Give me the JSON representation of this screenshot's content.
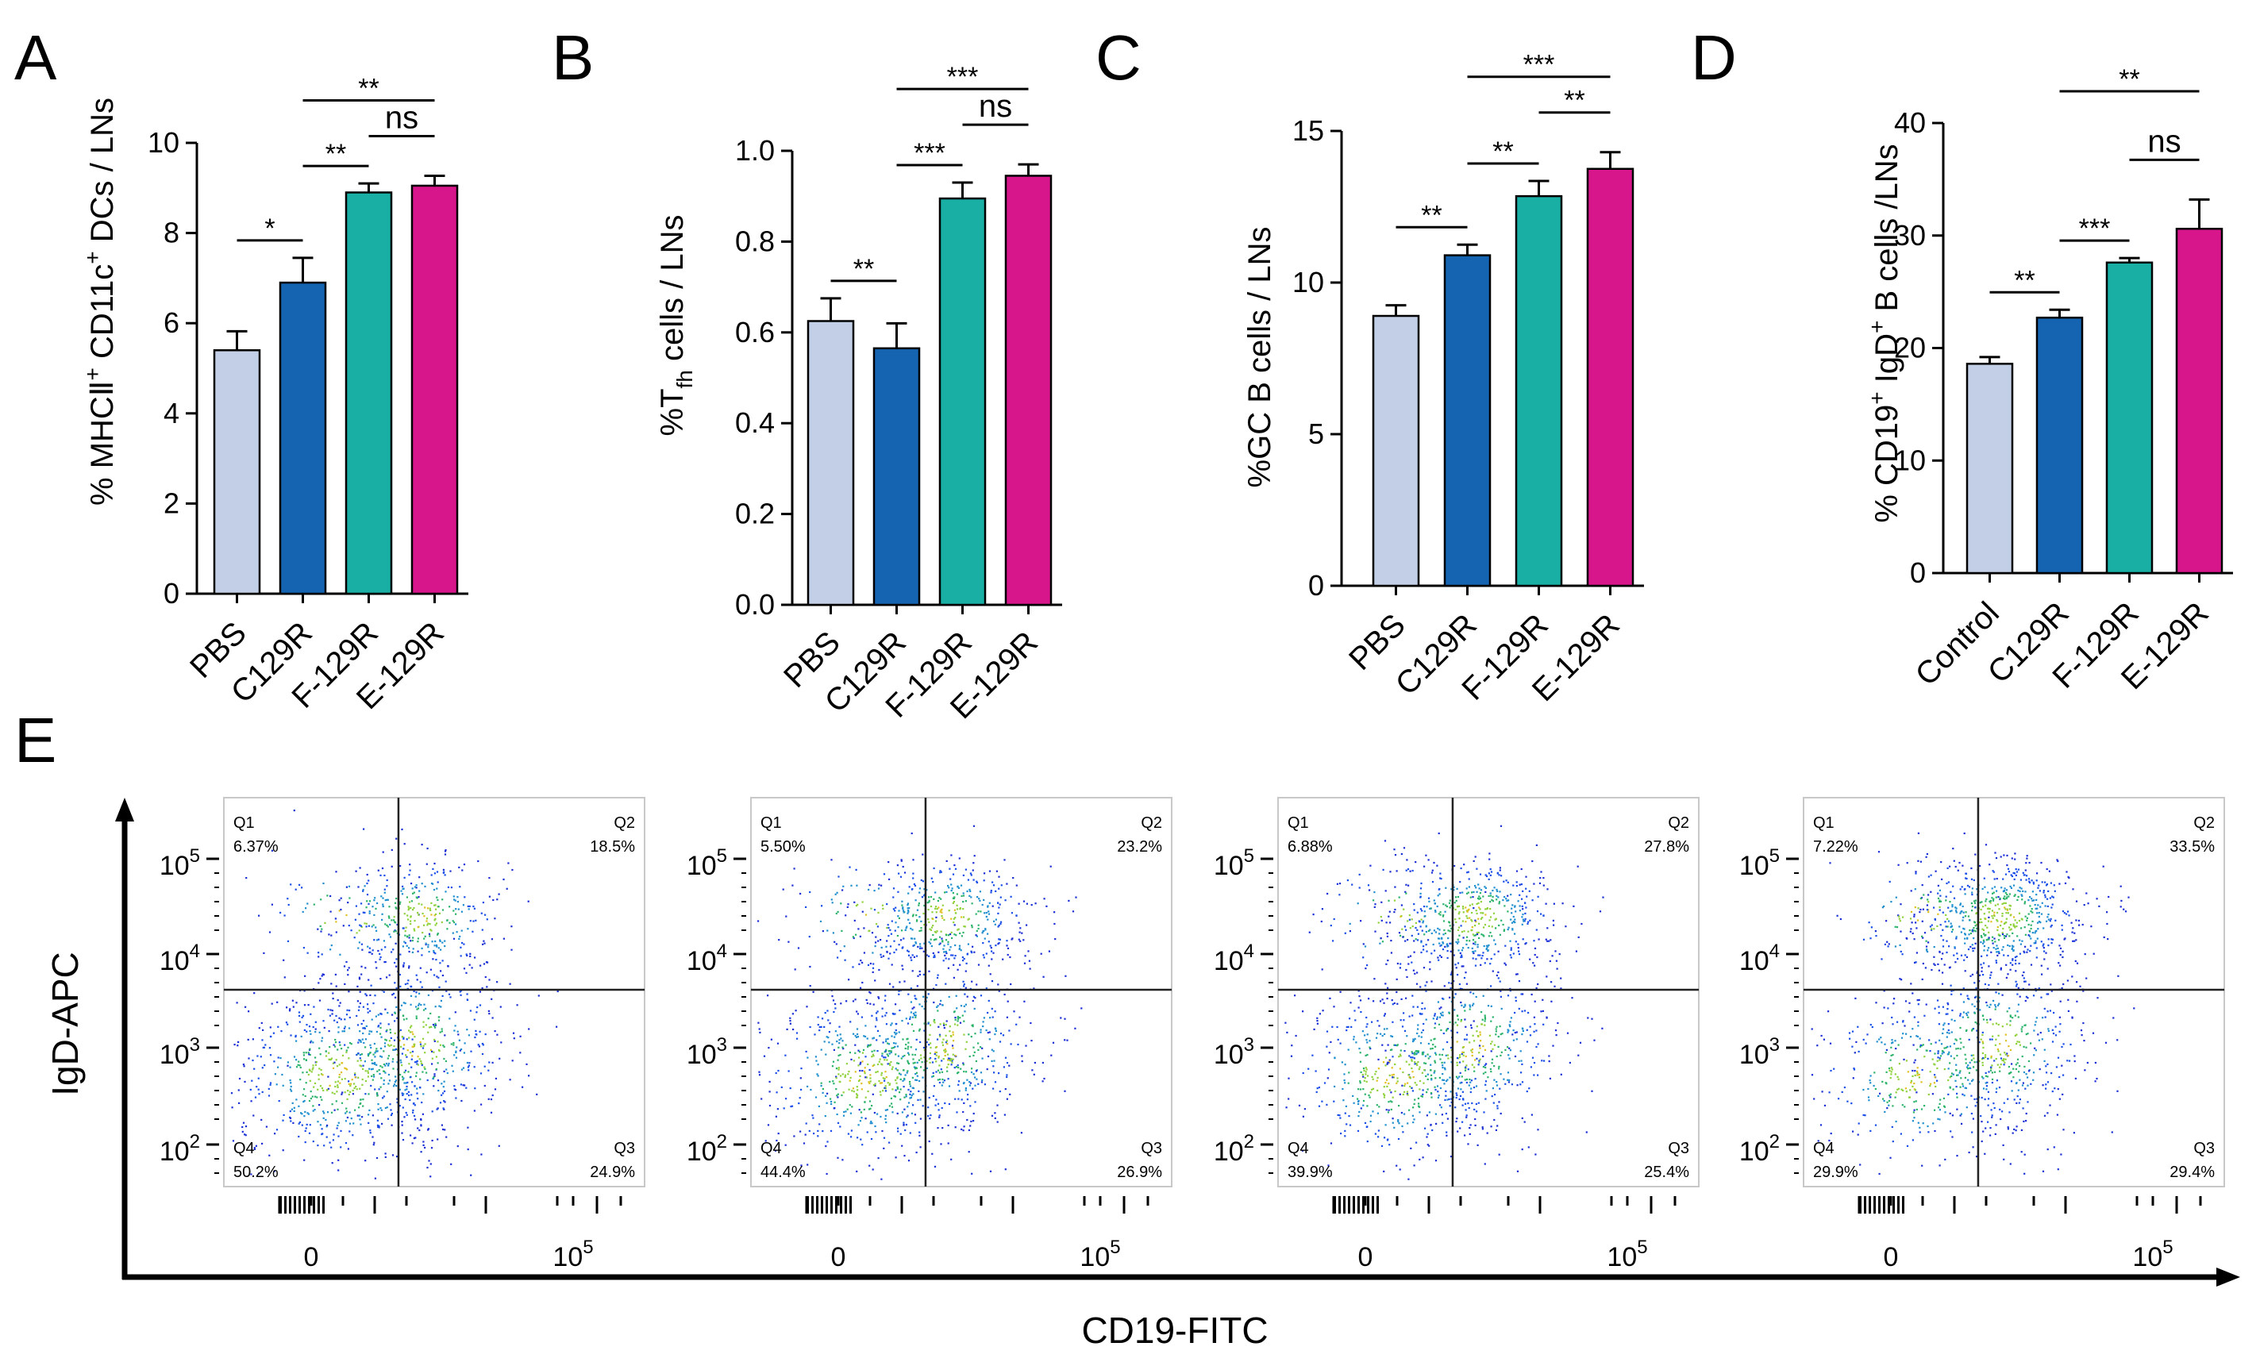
{
  "colors": {
    "pbs": "#c3cfe6",
    "c129r": "#1464b1",
    "f129r": "#19afa4",
    "e129r": "#d6168a",
    "axis": "#000000"
  },
  "chart_data": [
    {
      "type": "bar",
      "panel": "A",
      "ylabel_prefix": "% MHC",
      "ylabel_roman": "Ⅱ",
      "ylabel_sup1": "+",
      "ylabel_mid": " CD11c",
      "ylabel_sup2": "+",
      "ylabel_suffix": " DCs / LNs",
      "categories": [
        "PBS",
        "C129R",
        "F-129R",
        "E-129R"
      ],
      "values": [
        5.4,
        6.9,
        8.9,
        9.05
      ],
      "errors": [
        0.42,
        0.55,
        0.2,
        0.22
      ],
      "ylim": [
        0,
        10
      ],
      "yticks": [
        "0",
        "2",
        "4",
        "6",
        "8",
        "10"
      ],
      "significance": [
        {
          "from": 0,
          "to": 1,
          "label": "*"
        },
        {
          "from": 1,
          "to": 2,
          "label": "**"
        },
        {
          "from": 2,
          "to": 3,
          "label": "ns"
        },
        {
          "from": 1,
          "to": 3,
          "label": "**"
        }
      ]
    },
    {
      "type": "bar",
      "panel": "B",
      "ylabel_prefix": "%T",
      "ylabel_sub": "fh",
      "ylabel_suffix": " cells / LNs",
      "categories": [
        "PBS",
        "C129R",
        "F-129R",
        "E-129R"
      ],
      "values": [
        0.625,
        0.565,
        0.895,
        0.945
      ],
      "errors": [
        0.05,
        0.055,
        0.035,
        0.025
      ],
      "ylim": [
        0,
        1.0
      ],
      "yticks": [
        "0.0",
        "0.2",
        "0.4",
        "0.6",
        "0.8",
        "1.0"
      ],
      "significance": [
        {
          "from": 0,
          "to": 1,
          "label": "**"
        },
        {
          "from": 1,
          "to": 2,
          "label": "***"
        },
        {
          "from": 2,
          "to": 3,
          "label": "ns"
        },
        {
          "from": 1,
          "to": 3,
          "label": "***"
        }
      ]
    },
    {
      "type": "bar",
      "panel": "C",
      "ylabel": "%GC B cells / LNs",
      "categories": [
        "PBS",
        "C129R",
        "F-129R",
        "E-129R"
      ],
      "values": [
        8.9,
        10.9,
        12.85,
        13.75
      ],
      "errors": [
        0.35,
        0.35,
        0.5,
        0.55
      ],
      "ylim": [
        0,
        15
      ],
      "yticks": [
        "0",
        "5",
        "10",
        "15"
      ],
      "significance": [
        {
          "from": 0,
          "to": 1,
          "label": "**"
        },
        {
          "from": 1,
          "to": 2,
          "label": "**"
        },
        {
          "from": 2,
          "to": 3,
          "label": "**"
        },
        {
          "from": 1,
          "to": 3,
          "label": "***"
        }
      ]
    },
    {
      "type": "bar",
      "panel": "D",
      "ylabel_prefix": "% CD19",
      "ylabel_sup1": "+",
      "ylabel_mid": " IgD",
      "ylabel_sup2": "+",
      "ylabel_suffix": " B cells /LNs",
      "categories": [
        "Control",
        "C129R",
        "F-129R",
        "E-129R"
      ],
      "values": [
        18.6,
        22.7,
        27.6,
        30.6
      ],
      "errors": [
        0.6,
        0.7,
        0.4,
        2.6
      ],
      "ylim": [
        0,
        40
      ],
      "yticks": [
        "0",
        "10",
        "20",
        "30",
        "40"
      ],
      "significance": [
        {
          "from": 0,
          "to": 1,
          "label": "**"
        },
        {
          "from": 1,
          "to": 2,
          "label": "***"
        },
        {
          "from": 2,
          "to": 3,
          "label": "ns"
        },
        {
          "from": 1,
          "to": 3,
          "label": "**"
        }
      ]
    },
    {
      "type": "scatter",
      "panel": "E",
      "xlabel": "CD19-FITC",
      "ylabel": "IgD-APC",
      "y_tick_base": "10",
      "y_tick_exps": [
        "5",
        "4",
        "3",
        "2"
      ],
      "x_tick_zero": "0",
      "x_tick_base": "10",
      "x_tick_exp": "5",
      "plots": [
        {
          "Q1": "Q1",
          "Q1v": "6.37%",
          "Q2": "Q2",
          "Q2v": "18.5%",
          "Q3": "Q3",
          "Q3v": "24.9%",
          "Q4": "Q4",
          "Q4v": "50.2%"
        },
        {
          "Q1": "Q1",
          "Q1v": "5.50%",
          "Q2": "Q2",
          "Q2v": "23.2%",
          "Q3": "Q3",
          "Q3v": "26.9%",
          "Q4": "Q4",
          "Q4v": "44.4%"
        },
        {
          "Q1": "Q1",
          "Q1v": "6.88%",
          "Q2": "Q2",
          "Q2v": "27.8%",
          "Q3": "Q3",
          "Q3v": "25.4%",
          "Q4": "Q4",
          "Q4v": "39.9%"
        },
        {
          "Q1": "Q1",
          "Q1v": "7.22%",
          "Q2": "Q2",
          "Q2v": "33.5%",
          "Q3": "Q3",
          "Q3v": "29.4%",
          "Q4": "Q4",
          "Q4v": "29.9%"
        }
      ]
    }
  ]
}
